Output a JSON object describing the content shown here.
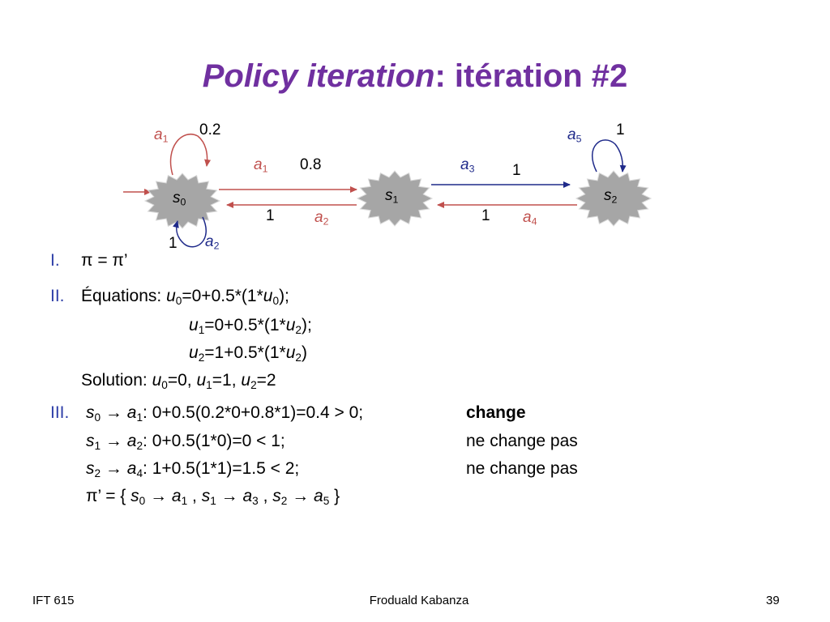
{
  "title": {
    "emphasis": "Policy iteration",
    "rest": ": itération #2"
  },
  "diagram": {
    "nodes": [
      [
        "s",
        "0"
      ],
      [
        "s",
        "1"
      ],
      [
        "s",
        "2"
      ]
    ],
    "edges": [
      {
        "action": [
          "a",
          "1"
        ],
        "prob": 0.2,
        "color": "#c0504d"
      },
      {
        "action": [
          "a",
          "2"
        ],
        "prob": 1,
        "color": "#1f2a8a"
      },
      {
        "action": [
          "a",
          "1"
        ],
        "prob": 0.8,
        "color": "#c0504d"
      },
      {
        "action": [
          "a",
          "2"
        ],
        "prob": 1,
        "color": "#c0504d"
      },
      {
        "action": [
          "a",
          "3"
        ],
        "prob": 1,
        "color": "#1f2a8a"
      },
      {
        "action": [
          "a",
          "4"
        ],
        "prob": 1,
        "color": "#c0504d"
      },
      {
        "action": [
          "a",
          "5"
        ],
        "prob": 1,
        "color": "#1f2a8a"
      }
    ]
  },
  "list": [
    {
      "marker": "I.",
      "lines": [
        [
          "π = π’"
        ]
      ]
    },
    {
      "marker": "II.",
      "lines": [
        [
          "Équations: ",
          "u",
          "0",
          "=0+0.5*(1*",
          "u",
          "0",
          ");"
        ],
        [
          "u",
          "1",
          "=0+0.5*(1*",
          "u",
          "2",
          ");"
        ],
        [
          "u",
          "2",
          "=1+0.5*(1*",
          "u",
          "2",
          ")"
        ],
        [
          "Solution: ",
          "u",
          "0",
          "=0, ",
          "u",
          "1",
          "=1, ",
          "u",
          "2",
          "=2"
        ]
      ]
    },
    {
      "marker": "III.",
      "lines": [
        [
          "s",
          "0",
          " → ",
          "a",
          "1",
          ": 0+0.5(0.2*0+0.8*1)=0.4 > 0;"
        ],
        [
          "s",
          "1",
          " → ",
          "a",
          "2",
          ": 0+0.5(1*0)=0 < 1;"
        ],
        [
          "s",
          "2",
          " → ",
          "a",
          "4",
          ": 1+0.5(1*1)=1.5 < 2;"
        ],
        [
          "π’ = { ",
          "s",
          "0",
          " → ",
          "a",
          "1",
          " , ",
          "s",
          "1",
          " → ",
          "a",
          "3",
          " , ",
          "s",
          "2",
          " → ",
          "a",
          "5",
          " }"
        ]
      ],
      "notes": [
        "change",
        "ne change pas",
        "ne change pas"
      ]
    }
  ],
  "footer": {
    "left": "IFT 615",
    "center": "Froduald Kabanza",
    "right": "39"
  }
}
